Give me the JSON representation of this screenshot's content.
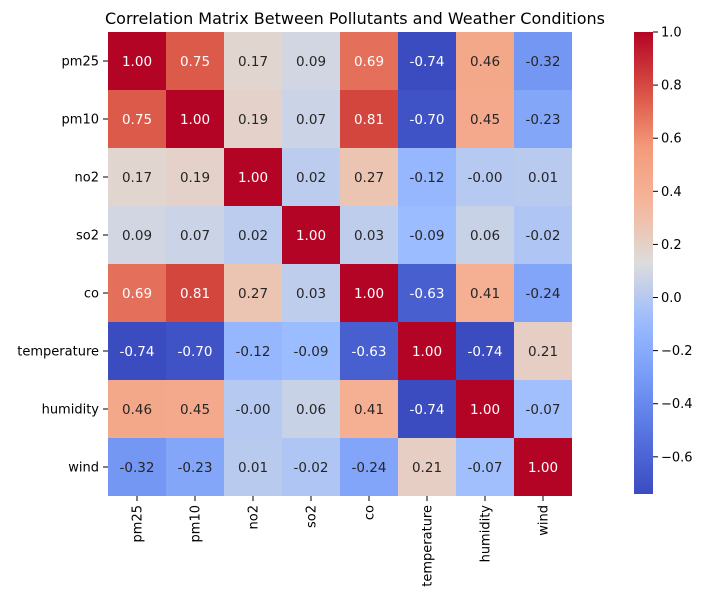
{
  "chart_data": {
    "type": "heatmap",
    "title": "Correlation Matrix Between Pollutants and Weather Conditions",
    "row_labels": [
      "pm25",
      "pm10",
      "no2",
      "so2",
      "co",
      "temperature",
      "humidity",
      "wind"
    ],
    "col_labels": [
      "pm25",
      "pm10",
      "no2",
      "so2",
      "co",
      "temperature",
      "humidity",
      "wind"
    ],
    "values": [
      [
        1.0,
        0.75,
        0.17,
        0.09,
        0.69,
        -0.74,
        0.46,
        -0.32
      ],
      [
        0.75,
        1.0,
        0.19,
        0.07,
        0.81,
        -0.7,
        0.45,
        -0.23
      ],
      [
        0.17,
        0.19,
        1.0,
        0.02,
        0.27,
        -0.12,
        0.0,
        0.01
      ],
      [
        0.09,
        0.07,
        0.02,
        1.0,
        0.03,
        -0.09,
        0.06,
        -0.02
      ],
      [
        0.69,
        0.81,
        0.27,
        0.03,
        1.0,
        -0.63,
        0.41,
        -0.24
      ],
      [
        -0.74,
        -0.7,
        -0.12,
        -0.09,
        -0.63,
        1.0,
        -0.74,
        0.21
      ],
      [
        0.46,
        0.45,
        0.0,
        0.06,
        0.41,
        -0.74,
        1.0,
        -0.07
      ],
      [
        -0.32,
        -0.23,
        0.01,
        -0.02,
        -0.24,
        0.21,
        -0.07,
        1.0
      ]
    ],
    "cell_text": [
      [
        "1.00",
        "0.75",
        "0.17",
        "0.09",
        "0.69",
        "-0.74",
        "0.46",
        "-0.32"
      ],
      [
        "0.75",
        "1.00",
        "0.19",
        "0.07",
        "0.81",
        "-0.70",
        "0.45",
        "-0.23"
      ],
      [
        "0.17",
        "0.19",
        "1.00",
        "0.02",
        "0.27",
        "-0.12",
        "-0.00",
        "0.01"
      ],
      [
        "0.09",
        "0.07",
        "0.02",
        "1.00",
        "0.03",
        "-0.09",
        "0.06",
        "-0.02"
      ],
      [
        "0.69",
        "0.81",
        "0.27",
        "0.03",
        "1.00",
        "-0.63",
        "0.41",
        "-0.24"
      ],
      [
        "-0.74",
        "-0.70",
        "-0.12",
        "-0.09",
        "-0.63",
        "1.00",
        "-0.74",
        "0.21"
      ],
      [
        "0.46",
        "0.45",
        "-0.00",
        "0.06",
        "0.41",
        "-0.74",
        "1.00",
        "-0.07"
      ],
      [
        "-0.32",
        "-0.23",
        "0.01",
        "-0.02",
        "-0.24",
        "0.21",
        "-0.07",
        "1.00"
      ]
    ],
    "colormap": "coolwarm",
    "vmin": -0.74,
    "vmax": 1.0,
    "colorbar_ticks": [
      -0.6,
      -0.4,
      -0.2,
      0.0,
      0.2,
      0.4,
      0.6,
      0.8,
      1.0
    ],
    "colorbar_tick_labels": [
      "−0.6",
      "−0.4",
      "−0.2",
      "0.0",
      "0.2",
      "0.4",
      "0.6",
      "0.8",
      "1.0"
    ]
  }
}
